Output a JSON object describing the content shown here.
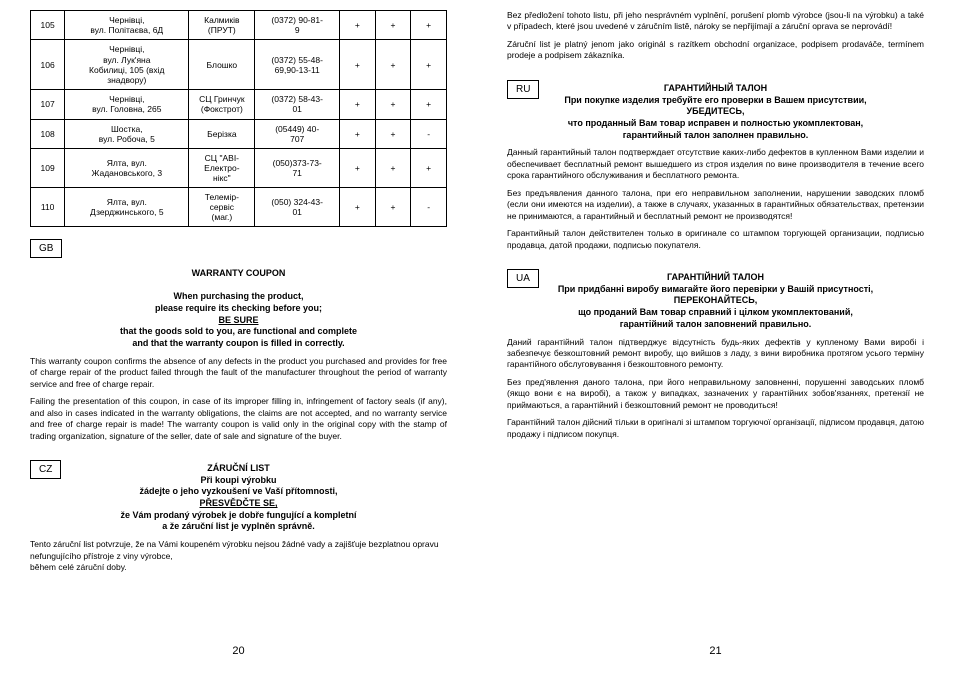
{
  "leftPage": {
    "pageNumber": "20",
    "tableRows": [
      {
        "num": "105",
        "addr": "Чернівці,\nвул. Політаєва, 6Д",
        "shop": "Калмиків\n(ПРУТ)",
        "phone": "(0372) 90-81-\n9",
        "c1": "+",
        "c2": "+",
        "c3": "+"
      },
      {
        "num": "106",
        "addr": "Чернівці,\nвул. Лук'яна\nКобилиці, 105 (вхід\nзнадвору)",
        "shop": "Блошко",
        "phone": "(0372) 55-48-\n69,90-13-11",
        "c1": "+",
        "c2": "+",
        "c3": "+"
      },
      {
        "num": "107",
        "addr": "Чернівці,\nвул. Головна, 265",
        "shop": "СЦ Гринчук\n(Фокстрот)",
        "phone": "(0372) 58-43-\n01",
        "c1": "+",
        "c2": "+",
        "c3": "+"
      },
      {
        "num": "108",
        "addr": "Шостка,\nвул. Робоча, 5",
        "shop": "Берізка",
        "phone": "(05449) 40-\n707",
        "c1": "+",
        "c2": "+",
        "c3": "-"
      },
      {
        "num": "109",
        "addr": "Ялта, вул.\nЖадановського, 3",
        "shop": "СЦ \"АВІ-\nЕлектро-\nнікс\"",
        "phone": "(050)373-73-\n71",
        "c1": "+",
        "c2": "+",
        "c3": "+"
      },
      {
        "num": "110",
        "addr": "Ялта, вул.\nДзерджинського, 5",
        "shop": "Телемір-\nсервіс\n(маг.)",
        "phone": "(050) 324-43-\n01",
        "c1": "+",
        "c2": "+",
        "c3": "-"
      }
    ],
    "gb": {
      "lang": "GB",
      "title1": "WARRANTY COUPON",
      "title2": "When purchasing the product,\nplease require its checking before you;",
      "title3": "BE SURE",
      "title4": "that the goods sold to you, are functional and complete\nand that the warranty coupon is filled in correctly.",
      "para1": "This warranty coupon confirms the absence of any defects in the product you purchased and provides for free of charge repair of the product failed through the fault of the manufacturer throughout the period of warranty service and free of charge repair.",
      "para2": "Failing the presentation of this coupon, in case of its improper filling in, infringement of factory seals (if any), and also in cases indicated in the warranty obligations, the claims are not accepted, and no warranty service and free of charge repair is made! The warranty coupon is valid only in the original copy with the stamp of trading organization, signature of the seller, date of sale and signature of the buyer."
    },
    "cz": {
      "lang": "CZ",
      "title1": "ZÁRUČNÍ LIST",
      "title2": "Při koupi výrobku\nžádejte o jeho vyzkoušení ve Vaší přítomnosti,",
      "title3": "PŘESVĚDČTE SE,",
      "title4": "že Vám prodaný výrobek je dobře fungující a kompletní\na že záruční list je vyplněn správně.",
      "para1": "Tento záruční list potvrzuje, že na Vámi koupeném výrobku nejsou žádné vady a zajišťuje bezplatnou opravu nefungujícího přístroje z viny výrobce,\nběhem celé záruční doby."
    }
  },
  "rightPage": {
    "pageNumber": "21",
    "czCont": {
      "para1": "Bez předložení tohoto listu, při jeho nesprávném vyplnění, porušení plomb výrobce (jsou-li na výrobku) a také v případech, které jsou uvedené v záručním listě, nároky se nepřijímají a záruční oprava se neprovádí!",
      "para2": "Záruční list je platný jenom jako originál s razítkem obchodní organizace, podpisem prodaváče, termínem prodeje a podpisem zákazníka."
    },
    "ru": {
      "lang": "RU",
      "title1": "ГАРАНТИЙНЫЙ ТАЛОН",
      "title2": "При покупке изделия требуйте его проверки в Вашем присутствии,\nУБЕДИТЕСЬ,\nчто проданный Вам товар исправен и полностью укомплектован,\nгарантийный талон заполнен правильно.",
      "para1": "Данный гарантийный талон подтверждает отсутствие каких-либо дефектов в купленном Вами изделии и обеспечивает бесплатный ремонт вышедшего из строя изделия по вине производителя в течение всего срока гарантийного обслуживания и бесплатного ремонта.",
      "para2": "Без предъявления данного талона, при его неправильном заполнении, нарушении заводских пломб (если они имеются на изделии), а также в случаях, указанных в гарантийных обязательствах, претензии не принимаются, а гарантийный и бесплатный ремонт не производятся!",
      "para3": "Гарантийный талон действителен только в оригинале со штампом торгующей организации, подписью продавца, датой продажи, подписью покупателя."
    },
    "ua": {
      "lang": "UA",
      "title1": "ГАРАНТІЙНИЙ ТАЛОН",
      "title2": "При придбанні виробу вимагайте його перевірки у Вашій присутності,\nПЕРЕКОНАЙТЕСЬ,\nщо проданий Вам товар справний і цілком укомплектований,\nгарантійний талон заповнений правильно.",
      "para1": "Даний гарантійний талон підтверджує відсутність будь-яких дефектів у купленому Вами виробі і забезпечує безкоштовний ремонт виробу, що вийшов з ладу, з вини виробника протягом усього терміну гарантійного обслуговування і безкоштовного ремонту.",
      "para2": "Без пред'явлення даного талона, при його неправильному заповненні, порушенні заводських пломб (якщо вони є на виробі), а також у випадках, зазначених у гарантійних зобов'язаннях, претензії не приймаються, а гарантійний і безкоштовний ремонт не проводиться!",
      "para3": "Гарантійний талон дійсний тільки в оригіналі зі штампом торгуючої організації, підписом продавця, датою продажу і підписом покупця."
    }
  }
}
